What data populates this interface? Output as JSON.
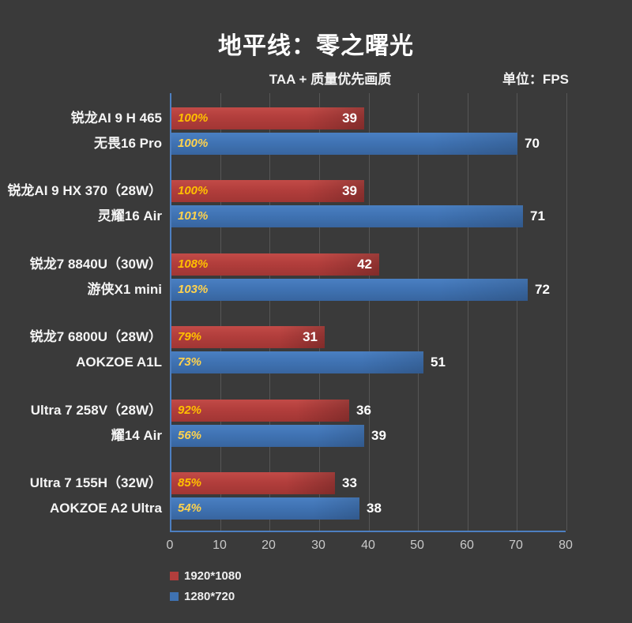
{
  "title": "地平线：零之曙光",
  "subtitle": "TAA + 质量优先画质",
  "unit_label": "单位：FPS",
  "colors": {
    "background": "#3a3a3a",
    "bar_red": "#b23e3c",
    "bar_blue": "#3f72b2",
    "axis_border_blue": "#4d7fc0",
    "gridline": "#565656",
    "title_text": "#ffffff",
    "axis_tick_text": "#c9c9c9",
    "percent_on_red": "#ffc000",
    "percent_on_blue": "#ffd24d",
    "value_text": "#ffffff"
  },
  "chart_data": {
    "type": "bar",
    "orientation": "horizontal",
    "title": "地平线：零之曙光",
    "subtitle": "TAA + 质量优先画质",
    "unit": "FPS",
    "xlim": [
      0,
      80
    ],
    "xticks": [
      0,
      10,
      20,
      30,
      40,
      50,
      60,
      70,
      80
    ],
    "grid": true,
    "legend_position": "bottom-left",
    "categories": [
      {
        "cpu": "锐龙AI 9 H 465",
        "device": "无畏16 Pro"
      },
      {
        "cpu": "锐龙AI 9 HX 370（28W）",
        "device": "灵耀16 Air"
      },
      {
        "cpu": "锐龙7 8840U（30W）",
        "device": "游侠X1 mini"
      },
      {
        "cpu": "锐龙7 6800U（28W）",
        "device": "AOKZOE A1L"
      },
      {
        "cpu": "Ultra 7 258V（28W）",
        "device": "耀14 Air"
      },
      {
        "cpu": "Ultra 7 155H（32W）",
        "device": "AOKZOE A2 Ultra"
      }
    ],
    "series": [
      {
        "name": "1920*1080",
        "color": "red",
        "values": [
          39,
          39,
          42,
          31,
          36,
          33
        ],
        "percent_labels": [
          "100%",
          "100%",
          "108%",
          "79%",
          "92%",
          "85%"
        ],
        "percent_color": "#ffc000",
        "value_label_inside": [
          true,
          true,
          true,
          true,
          false,
          false
        ]
      },
      {
        "name": "1280*720",
        "color": "blue",
        "values": [
          70,
          71,
          72,
          51,
          39,
          38
        ],
        "percent_labels": [
          "100%",
          "101%",
          "103%",
          "73%",
          "56%",
          "54%"
        ],
        "percent_color": "#ffd24d",
        "value_label_inside": [
          false,
          false,
          false,
          false,
          false,
          false
        ]
      }
    ]
  },
  "legend": {
    "items": [
      {
        "label": "1920*1080",
        "color": "red"
      },
      {
        "label": "1280*720",
        "color": "blue"
      }
    ]
  }
}
